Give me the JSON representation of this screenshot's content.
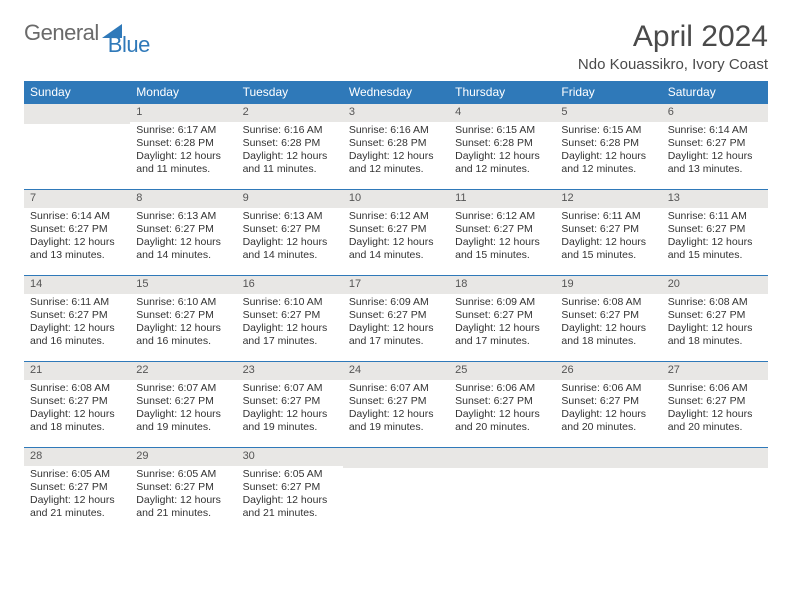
{
  "brand": {
    "part1": "General",
    "part2": "Blue"
  },
  "title": "April 2024",
  "location": "Ndo Kouassikro, Ivory Coast",
  "colors": {
    "header_bg": "#2f79b9",
    "header_text": "#ffffff",
    "daynum_bg": "#e8e7e5",
    "daynum_border": "#2f79b9",
    "body_text": "#333333",
    "title_text": "#4a4a4a"
  },
  "dayHeaders": [
    "Sunday",
    "Monday",
    "Tuesday",
    "Wednesday",
    "Thursday",
    "Friday",
    "Saturday"
  ],
  "startWeekday": 1,
  "daysInMonth": 30,
  "days": {
    "1": {
      "sunrise": "6:17 AM",
      "sunset": "6:28 PM",
      "daylight": "12 hours and 11 minutes."
    },
    "2": {
      "sunrise": "6:16 AM",
      "sunset": "6:28 PM",
      "daylight": "12 hours and 11 minutes."
    },
    "3": {
      "sunrise": "6:16 AM",
      "sunset": "6:28 PM",
      "daylight": "12 hours and 12 minutes."
    },
    "4": {
      "sunrise": "6:15 AM",
      "sunset": "6:28 PM",
      "daylight": "12 hours and 12 minutes."
    },
    "5": {
      "sunrise": "6:15 AM",
      "sunset": "6:28 PM",
      "daylight": "12 hours and 12 minutes."
    },
    "6": {
      "sunrise": "6:14 AM",
      "sunset": "6:27 PM",
      "daylight": "12 hours and 13 minutes."
    },
    "7": {
      "sunrise": "6:14 AM",
      "sunset": "6:27 PM",
      "daylight": "12 hours and 13 minutes."
    },
    "8": {
      "sunrise": "6:13 AM",
      "sunset": "6:27 PM",
      "daylight": "12 hours and 14 minutes."
    },
    "9": {
      "sunrise": "6:13 AM",
      "sunset": "6:27 PM",
      "daylight": "12 hours and 14 minutes."
    },
    "10": {
      "sunrise": "6:12 AM",
      "sunset": "6:27 PM",
      "daylight": "12 hours and 14 minutes."
    },
    "11": {
      "sunrise": "6:12 AM",
      "sunset": "6:27 PM",
      "daylight": "12 hours and 15 minutes."
    },
    "12": {
      "sunrise": "6:11 AM",
      "sunset": "6:27 PM",
      "daylight": "12 hours and 15 minutes."
    },
    "13": {
      "sunrise": "6:11 AM",
      "sunset": "6:27 PM",
      "daylight": "12 hours and 15 minutes."
    },
    "14": {
      "sunrise": "6:11 AM",
      "sunset": "6:27 PM",
      "daylight": "12 hours and 16 minutes."
    },
    "15": {
      "sunrise": "6:10 AM",
      "sunset": "6:27 PM",
      "daylight": "12 hours and 16 minutes."
    },
    "16": {
      "sunrise": "6:10 AM",
      "sunset": "6:27 PM",
      "daylight": "12 hours and 17 minutes."
    },
    "17": {
      "sunrise": "6:09 AM",
      "sunset": "6:27 PM",
      "daylight": "12 hours and 17 minutes."
    },
    "18": {
      "sunrise": "6:09 AM",
      "sunset": "6:27 PM",
      "daylight": "12 hours and 17 minutes."
    },
    "19": {
      "sunrise": "6:08 AM",
      "sunset": "6:27 PM",
      "daylight": "12 hours and 18 minutes."
    },
    "20": {
      "sunrise": "6:08 AM",
      "sunset": "6:27 PM",
      "daylight": "12 hours and 18 minutes."
    },
    "21": {
      "sunrise": "6:08 AM",
      "sunset": "6:27 PM",
      "daylight": "12 hours and 18 minutes."
    },
    "22": {
      "sunrise": "6:07 AM",
      "sunset": "6:27 PM",
      "daylight": "12 hours and 19 minutes."
    },
    "23": {
      "sunrise": "6:07 AM",
      "sunset": "6:27 PM",
      "daylight": "12 hours and 19 minutes."
    },
    "24": {
      "sunrise": "6:07 AM",
      "sunset": "6:27 PM",
      "daylight": "12 hours and 19 minutes."
    },
    "25": {
      "sunrise": "6:06 AM",
      "sunset": "6:27 PM",
      "daylight": "12 hours and 20 minutes."
    },
    "26": {
      "sunrise": "6:06 AM",
      "sunset": "6:27 PM",
      "daylight": "12 hours and 20 minutes."
    },
    "27": {
      "sunrise": "6:06 AM",
      "sunset": "6:27 PM",
      "daylight": "12 hours and 20 minutes."
    },
    "28": {
      "sunrise": "6:05 AM",
      "sunset": "6:27 PM",
      "daylight": "12 hours and 21 minutes."
    },
    "29": {
      "sunrise": "6:05 AM",
      "sunset": "6:27 PM",
      "daylight": "12 hours and 21 minutes."
    },
    "30": {
      "sunrise": "6:05 AM",
      "sunset": "6:27 PM",
      "daylight": "12 hours and 21 minutes."
    }
  },
  "labels": {
    "sunrise": "Sunrise:",
    "sunset": "Sunset:",
    "daylight": "Daylight:"
  }
}
